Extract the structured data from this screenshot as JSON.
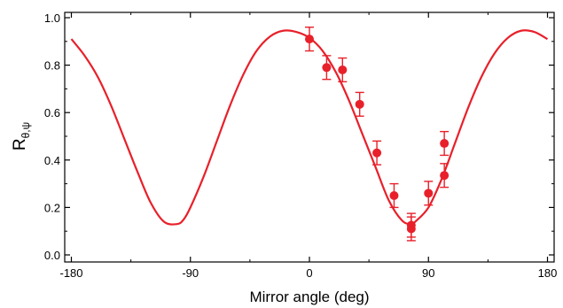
{
  "chart_data": {
    "type": "scatter",
    "xlabel": "Mirror angle (deg)",
    "ylabel_main": "R",
    "ylabel_sub": "θ,ψ",
    "xlim": [
      -180,
      180
    ],
    "ylim": [
      0,
      1.0
    ],
    "x_ticks": [
      -180,
      -90,
      0,
      90,
      180
    ],
    "x_tick_labels": [
      "-180",
      "-90",
      "0",
      "90",
      "180"
    ],
    "y_ticks": [
      0.0,
      0.2,
      0.4,
      0.6,
      0.8,
      1.0
    ],
    "y_tick_labels": [
      "0.0",
      "0.2",
      "0.4",
      "0.6",
      "0.8",
      "1.0"
    ],
    "grid": false,
    "color": "#e8202a",
    "series": [
      {
        "kind": "line",
        "x": [
          -180,
          -170,
          -160,
          -150,
          -140,
          -130,
          -120,
          -110,
          -100,
          -95,
          -90,
          -80,
          -70,
          -60,
          -50,
          -40,
          -30,
          -20,
          -10,
          0,
          10,
          20,
          30,
          40,
          50,
          60,
          70,
          77,
          80,
          90,
          100,
          110,
          120,
          130,
          140,
          150,
          160,
          170,
          180
        ],
        "y": [
          0.91,
          0.84,
          0.75,
          0.63,
          0.49,
          0.35,
          0.22,
          0.14,
          0.13,
          0.15,
          0.2,
          0.33,
          0.48,
          0.63,
          0.76,
          0.86,
          0.92,
          0.945,
          0.94,
          0.915,
          0.86,
          0.77,
          0.65,
          0.51,
          0.37,
          0.23,
          0.145,
          0.13,
          0.14,
          0.2,
          0.32,
          0.47,
          0.62,
          0.75,
          0.85,
          0.915,
          0.945,
          0.94,
          0.91
        ]
      },
      {
        "kind": "points_with_errorbars",
        "x": [
          0,
          13,
          25,
          38,
          51,
          64,
          77,
          77,
          90,
          102,
          102
        ],
        "y": [
          0.91,
          0.79,
          0.78,
          0.635,
          0.43,
          0.25,
          0.125,
          0.11,
          0.26,
          0.47,
          0.335
        ],
        "err": [
          0.05,
          0.05,
          0.05,
          0.05,
          0.05,
          0.05,
          0.05,
          0.05,
          0.05,
          0.05,
          0.05
        ]
      }
    ]
  }
}
